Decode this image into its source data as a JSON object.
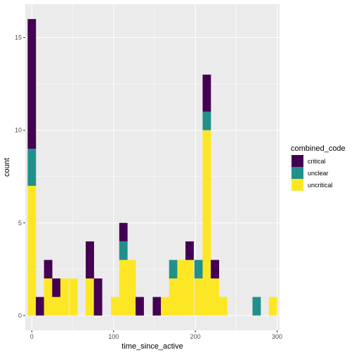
{
  "chart_data": {
    "type": "bar",
    "stacked": true,
    "xlabel": "time_since_active",
    "ylabel": "count",
    "xlim": [
      -8,
      303
    ],
    "ylim": [
      -0.8,
      16.8
    ],
    "x_ticks": [
      0,
      100,
      200,
      300
    ],
    "x_tick_labels": [
      "0",
      "100",
      "200",
      "300"
    ],
    "y_ticks": [
      0,
      5,
      10,
      15
    ],
    "y_tick_labels": [
      "0",
      "5",
      "10",
      "15"
    ],
    "grid": true,
    "legend_position": "right",
    "bin_width": 10.2,
    "bins": [
      0,
      10,
      20,
      30,
      40,
      51,
      61,
      71,
      81,
      91,
      102,
      112,
      122,
      132,
      142,
      153,
      163,
      173,
      183,
      193,
      204,
      214,
      224,
      234,
      244,
      255,
      265,
      275,
      285,
      295
    ],
    "legend": {
      "title": "combined_code",
      "items": [
        {
          "label": "critical",
          "color": "#440154"
        },
        {
          "label": "unclear",
          "color": "#21908C"
        },
        {
          "label": "uncritical",
          "color": "#FDE725"
        }
      ]
    },
    "series": [
      {
        "name": "critical",
        "color": "#440154",
        "values": [
          7,
          1,
          1,
          1,
          0,
          0,
          0,
          2,
          2,
          0,
          0,
          1,
          0,
          1,
          0,
          1,
          0,
          0,
          0,
          1,
          0,
          2,
          1,
          0,
          0,
          0,
          0,
          0,
          0,
          0
        ]
      },
      {
        "name": "unclear",
        "color": "#21908C",
        "values": [
          2,
          0,
          0,
          0,
          0,
          0,
          0,
          0,
          0,
          0,
          0,
          1,
          0,
          0,
          0,
          0,
          0,
          1,
          0,
          0,
          1,
          1,
          0,
          0,
          0,
          0,
          0,
          1,
          0,
          0
        ]
      },
      {
        "name": "uncritical",
        "color": "#FDE725",
        "values": [
          7,
          0,
          2,
          1,
          2,
          2,
          0,
          2,
          0,
          0,
          1,
          3,
          3,
          0,
          0,
          0,
          1,
          2,
          3,
          3,
          2,
          10,
          2,
          1,
          0,
          0,
          0,
          0,
          0,
          1
        ]
      }
    ]
  }
}
